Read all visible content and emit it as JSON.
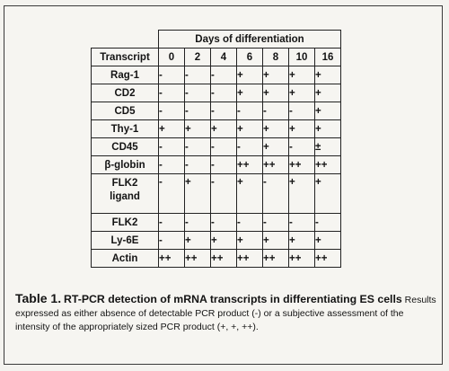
{
  "table": {
    "group_header": "Days of differentiation",
    "column_header": "Transcript",
    "days": [
      "0",
      "2",
      "4",
      "6",
      "8",
      "10",
      "16"
    ],
    "rows": [
      {
        "name": "Rag-1",
        "values": [
          "-",
          "-",
          "-",
          "+",
          "+",
          "+",
          "+"
        ]
      },
      {
        "name": "CD2",
        "values": [
          "-",
          "-",
          "-",
          "+",
          "+",
          "+",
          "+"
        ]
      },
      {
        "name": "CD5",
        "values": [
          "-",
          "-",
          "-",
          "-",
          "-",
          "-",
          "+"
        ]
      },
      {
        "name": "Thy-1",
        "values": [
          "+",
          "+",
          "+",
          "+",
          "+",
          "+",
          "+"
        ]
      },
      {
        "name": "CD45",
        "values": [
          "-",
          "-",
          "-",
          "-",
          "+",
          "-",
          "±"
        ]
      },
      {
        "name": "β-globin",
        "values": [
          "-",
          "-",
          "-",
          "++",
          "++",
          "++",
          "++"
        ]
      },
      {
        "name": "FLK2 ligand",
        "values": [
          "-",
          "+",
          "-",
          "+",
          "-",
          "+",
          "+"
        ]
      },
      {
        "name": "FLK2",
        "values": [
          "-",
          "-",
          "-",
          "-",
          "-",
          "-",
          "-"
        ]
      },
      {
        "name": "Ly-6E",
        "values": [
          "-",
          "+",
          "+",
          "+",
          "+",
          "+",
          "+"
        ]
      },
      {
        "name": "Actin",
        "values": [
          "++",
          "++",
          "++",
          "++",
          "++",
          "++",
          "++"
        ]
      }
    ]
  },
  "caption": {
    "label": "Table 1.",
    "title": "RT-PCR detection of mRNA transcripts in differentiating ES cells",
    "body": "Results expressed as either absence of detectable PCR product (-) or a subjective assessment of the intensity of the appropriately sized PCR product (+, +, ++)."
  }
}
